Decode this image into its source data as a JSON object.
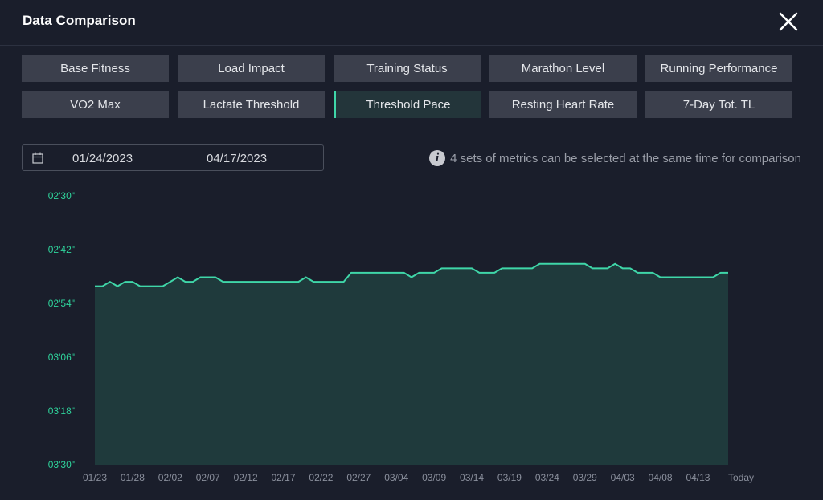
{
  "header": {
    "title": "Data Comparison"
  },
  "tabs": [
    {
      "label": "Base Fitness",
      "selected": false
    },
    {
      "label": "Load Impact",
      "selected": false
    },
    {
      "label": "Training Status",
      "selected": false
    },
    {
      "label": "Marathon Level",
      "selected": false
    },
    {
      "label": "Running Performance",
      "selected": false
    },
    {
      "label": "VO2 Max",
      "selected": false
    },
    {
      "label": "Lactate Threshold",
      "selected": false
    },
    {
      "label": "Threshold Pace",
      "selected": true
    },
    {
      "label": "Resting Heart Rate",
      "selected": false
    },
    {
      "label": "7-Day Tot. TL",
      "selected": false
    }
  ],
  "date_range": {
    "start": "01/24/2023",
    "end": "04/17/2023"
  },
  "info": "4 sets of metrics can be selected at the same time for comparison",
  "chart_data": {
    "type": "area",
    "categories": [
      "01/23",
      null,
      null,
      null,
      null,
      "01/28",
      null,
      null,
      null,
      null,
      "02/02",
      null,
      null,
      null,
      null,
      "02/07",
      null,
      null,
      null,
      null,
      "02/12",
      null,
      null,
      null,
      null,
      "02/17",
      null,
      null,
      null,
      null,
      "02/22",
      null,
      null,
      null,
      null,
      "02/27",
      null,
      null,
      null,
      null,
      "03/04",
      null,
      null,
      null,
      null,
      "03/09",
      null,
      null,
      null,
      null,
      "03/14",
      null,
      null,
      null,
      null,
      "03/19",
      null,
      null,
      null,
      null,
      "03/24",
      null,
      null,
      null,
      null,
      "03/29",
      null,
      null,
      null,
      null,
      "04/03",
      null,
      null,
      null,
      null,
      "04/08",
      null,
      null,
      null,
      null,
      "04/13",
      null,
      null,
      null,
      "Today"
    ],
    "values": [
      170,
      170,
      169,
      170,
      169,
      169,
      170,
      170,
      170,
      170,
      169,
      168,
      169,
      169,
      168,
      168,
      168,
      169,
      169,
      169,
      169,
      169,
      169,
      169,
      169,
      169,
      169,
      169,
      168,
      169,
      169,
      169,
      169,
      169,
      167,
      167,
      167,
      167,
      167,
      167,
      167,
      167,
      168,
      167,
      167,
      167,
      166,
      166,
      166,
      166,
      166,
      167,
      167,
      167,
      166,
      166,
      166,
      166,
      166,
      165,
      165,
      165,
      165,
      165,
      165,
      165,
      166,
      166,
      166,
      165,
      166,
      166,
      167,
      167,
      167,
      168,
      168,
      168,
      168,
      168,
      168,
      168,
      168,
      167,
      167
    ],
    "ylim": [
      210,
      150
    ],
    "yticks": [
      {
        "value": 150,
        "label": "02'30\""
      },
      {
        "value": 162,
        "label": "02'42\""
      },
      {
        "value": 174,
        "label": "02'54\""
      },
      {
        "value": 186,
        "label": "03'06\""
      },
      {
        "value": 198,
        "label": "03'18\""
      },
      {
        "value": 210,
        "label": "03'30\""
      }
    ],
    "color": "#3fd6a8",
    "fill": "#1f3a3c"
  }
}
